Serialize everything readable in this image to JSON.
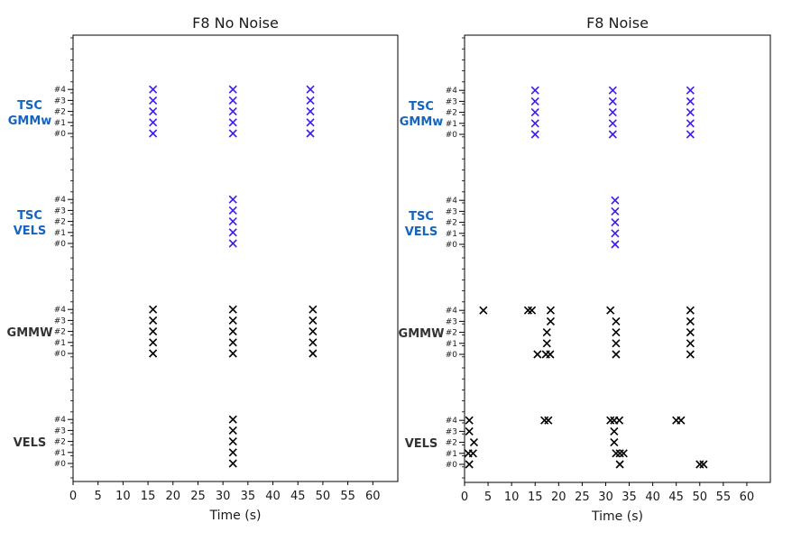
{
  "colors": {
    "blue": "#1565c0",
    "marker_blue": "#3a1ee8",
    "marker_black": "#000000",
    "dark": "#333333"
  },
  "chart_data": [
    {
      "type": "scatter",
      "title": "F8 No Noise",
      "xlabel": "Time (s)",
      "xlim": [
        0,
        65
      ],
      "xticks": [
        "0",
        "5",
        "10",
        "15",
        "20",
        "25",
        "30",
        "35",
        "40",
        "45",
        "50",
        "55",
        "60"
      ],
      "groups": [
        {
          "label": "TSC\nGMMw",
          "color": "blue",
          "marker_color": "marker_blue",
          "ticks": [
            "#4",
            "#3",
            "#2",
            "#1",
            "#0"
          ],
          "points": [
            [
              16,
              4
            ],
            [
              16,
              3
            ],
            [
              16,
              2
            ],
            [
              16,
              1
            ],
            [
              16,
              0
            ],
            [
              32,
              4
            ],
            [
              32,
              3
            ],
            [
              32,
              2
            ],
            [
              32,
              1
            ],
            [
              32,
              0
            ],
            [
              47.5,
              4
            ],
            [
              47.5,
              3
            ],
            [
              47.5,
              2
            ],
            [
              47.5,
              1
            ],
            [
              47.5,
              0
            ]
          ]
        },
        {
          "label": "TSC\nVELS",
          "color": "blue",
          "marker_color": "marker_blue",
          "ticks": [
            "#4",
            "#3",
            "#2",
            "#1",
            "#0"
          ],
          "points": [
            [
              32,
              4
            ],
            [
              32,
              3
            ],
            [
              32,
              2
            ],
            [
              32,
              1
            ],
            [
              32,
              0
            ]
          ]
        },
        {
          "label": "GMMW",
          "color": "dark",
          "marker_color": "marker_black",
          "ticks": [
            "#4",
            "#3",
            "#2",
            "#1",
            "#0"
          ],
          "points": [
            [
              16,
              4
            ],
            [
              16,
              3
            ],
            [
              16,
              2
            ],
            [
              16,
              1
            ],
            [
              16,
              0
            ],
            [
              32,
              4
            ],
            [
              32,
              3
            ],
            [
              32,
              2
            ],
            [
              32,
              1
            ],
            [
              32,
              0
            ],
            [
              48,
              4
            ],
            [
              48,
              3
            ],
            [
              48,
              2
            ],
            [
              48,
              1
            ],
            [
              48,
              0
            ]
          ]
        },
        {
          "label": "VELS",
          "color": "dark",
          "marker_color": "marker_black",
          "ticks": [
            "#4",
            "#3",
            "#2",
            "#1",
            "#0"
          ],
          "points": [
            [
              32,
              4
            ],
            [
              32,
              3
            ],
            [
              32,
              2
            ],
            [
              32,
              1
            ],
            [
              32,
              0
            ]
          ]
        }
      ]
    },
    {
      "type": "scatter",
      "title": "F8 Noise",
      "xlabel": "Time (s)",
      "xlim": [
        0,
        65
      ],
      "xticks": [
        "0",
        "5",
        "10",
        "15",
        "20",
        "25",
        "30",
        "35",
        "40",
        "45",
        "50",
        "55",
        "60"
      ],
      "groups": [
        {
          "label": "TSC\nGMMw",
          "color": "blue",
          "marker_color": "marker_blue",
          "ticks": [
            "#4",
            "#3",
            "#2",
            "#1",
            "#0"
          ],
          "points": [
            [
              15,
              4
            ],
            [
              15,
              3
            ],
            [
              15,
              2
            ],
            [
              15,
              1
            ],
            [
              15,
              0
            ],
            [
              31.5,
              4
            ],
            [
              31.5,
              3
            ],
            [
              31.5,
              2
            ],
            [
              31.5,
              1
            ],
            [
              31.5,
              0
            ],
            [
              48,
              4
            ],
            [
              48,
              3
            ],
            [
              48,
              2
            ],
            [
              48,
              1
            ],
            [
              48,
              0
            ]
          ]
        },
        {
          "label": "TSC\nVELS",
          "color": "blue",
          "marker_color": "marker_blue",
          "ticks": [
            "#4",
            "#3",
            "#2",
            "#1",
            "#0"
          ],
          "points": [
            [
              32,
              4
            ],
            [
              32,
              3
            ],
            [
              32,
              2
            ],
            [
              32,
              1
            ],
            [
              32,
              0
            ]
          ]
        },
        {
          "label": "GMMW",
          "color": "dark",
          "marker_color": "marker_black",
          "ticks": [
            "#4",
            "#3",
            "#2",
            "#1",
            "#0"
          ],
          "points": [
            [
              4,
              4
            ],
            [
              13.5,
              4
            ],
            [
              14.3,
              4
            ],
            [
              18.3,
              4
            ],
            [
              31,
              4
            ],
            [
              48,
              4
            ],
            [
              18.3,
              3
            ],
            [
              32.2,
              3
            ],
            [
              48,
              3
            ],
            [
              17.5,
              2
            ],
            [
              32.2,
              2
            ],
            [
              48,
              2
            ],
            [
              17.5,
              1
            ],
            [
              32.2,
              1
            ],
            [
              48,
              1
            ],
            [
              15.5,
              0
            ],
            [
              17.3,
              0
            ],
            [
              18.2,
              0
            ],
            [
              32.2,
              0
            ],
            [
              48,
              0
            ]
          ]
        },
        {
          "label": "VELS",
          "color": "dark",
          "marker_color": "marker_black",
          "ticks": [
            "#4",
            "#3",
            "#2",
            "#1",
            "#0"
          ],
          "points": [
            [
              1,
              4
            ],
            [
              17,
              4
            ],
            [
              17.8,
              4
            ],
            [
              31,
              4
            ],
            [
              31.8,
              4
            ],
            [
              32.9,
              4
            ],
            [
              45,
              4
            ],
            [
              46,
              4
            ],
            [
              1,
              3
            ],
            [
              31.8,
              3
            ],
            [
              2,
              2
            ],
            [
              31.8,
              2
            ],
            [
              0.8,
              1
            ],
            [
              1.8,
              1
            ],
            [
              32.2,
              1
            ],
            [
              33,
              1
            ],
            [
              33.8,
              1
            ],
            [
              1,
              0
            ],
            [
              33,
              0
            ],
            [
              50,
              0
            ],
            [
              50.8,
              0
            ]
          ]
        }
      ]
    }
  ]
}
